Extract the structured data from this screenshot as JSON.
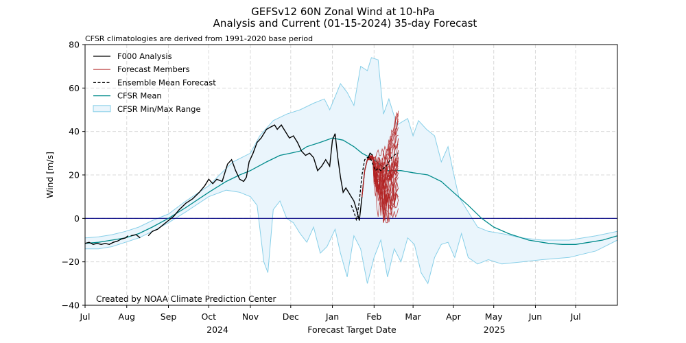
{
  "chart_data": {
    "type": "line",
    "title": "GEFSv12 60N Zonal Wind at 10-hPa",
    "subtitle": "Analysis and Current (01-15-2024) 35-day Forecast",
    "note": "CFSR climatologies are derived from 1991-2020 base period",
    "credit": "Created by NOAA Climate Prediction Center",
    "xlabel": "Forecast Target Date",
    "ylabel": "Wind [m/s]",
    "x_units": "days since Jul 1 (year 1)",
    "xlim": [
      0,
      396
    ],
    "ylim": [
      -40,
      80
    ],
    "yticks": [
      -40,
      -20,
      0,
      20,
      40,
      60,
      80
    ],
    "xticks": [
      {
        "day": 0,
        "label": "Jul"
      },
      {
        "day": 31,
        "label": "Aug"
      },
      {
        "day": 62,
        "label": "Sep"
      },
      {
        "day": 92,
        "label": "Oct"
      },
      {
        "day": 123,
        "label": "Nov"
      },
      {
        "day": 153,
        "label": "Dec"
      },
      {
        "day": 184,
        "label": "Jan"
      },
      {
        "day": 215,
        "label": "Feb"
      },
      {
        "day": 244,
        "label": "Mar"
      },
      {
        "day": 274,
        "label": "Apr"
      },
      {
        "day": 304,
        "label": "May"
      },
      {
        "day": 335,
        "label": "Jun"
      },
      {
        "day": 365,
        "label": "Jul"
      }
    ],
    "year_labels": [
      {
        "day": 98,
        "label": "2024"
      },
      {
        "day": 304,
        "label": "2025"
      }
    ],
    "grid": true,
    "zero_line": true,
    "legend_position": "top-left",
    "legend": [
      {
        "key": "analysis",
        "label": "F000 Analysis"
      },
      {
        "key": "members",
        "label": "Forecast Members"
      },
      {
        "key": "ensmean",
        "label": "Ensemble Mean Forecast"
      },
      {
        "key": "cfsr_mean",
        "label": "CFSR Mean"
      },
      {
        "key": "cfsr_range",
        "label": "CFSR Min/Max Range"
      }
    ],
    "colors": {
      "analysis": "#000000",
      "members": "#b22222",
      "ensmean": "#000000",
      "cfsr_mean": "#008b8b",
      "range_fill": "#eaf5fc",
      "range_edge": "#87cfe8",
      "zero_line": "#000080",
      "grid": "#d9d9d9"
    },
    "cfsr_mean": {
      "x": [
        0,
        10,
        20,
        30,
        40,
        50,
        62,
        75,
        92,
        105,
        115,
        123,
        135,
        145,
        153,
        160,
        165,
        175,
        184,
        192,
        200,
        206,
        215,
        225,
        235,
        244,
        255,
        265,
        274,
        285,
        295,
        304,
        315,
        330,
        345,
        355,
        365,
        375,
        385,
        396
      ],
      "y": [
        -11.5,
        -11,
        -10,
        -9,
        -7,
        -4,
        0,
        5,
        12,
        17,
        20,
        22,
        26,
        29,
        30,
        31,
        33,
        35,
        37,
        36,
        33,
        30,
        27,
        22,
        22,
        21,
        20,
        17,
        12,
        6,
        0,
        -4,
        -7,
        -10,
        -11.5,
        -12,
        -12,
        -11,
        -10,
        -8
      ]
    },
    "cfsr_max": {
      "x": [
        0,
        10,
        20,
        30,
        40,
        50,
        62,
        75,
        92,
        100,
        110,
        123,
        130,
        140,
        150,
        160,
        170,
        178,
        182,
        186,
        190,
        195,
        200,
        205,
        210,
        213,
        218,
        222,
        226,
        232,
        240,
        244,
        248,
        254,
        260,
        265,
        270,
        274,
        278,
        282,
        286,
        292,
        300,
        310,
        325,
        340,
        360,
        380,
        396
      ],
      "y": [
        -9,
        -8.5,
        -7.5,
        -6,
        -4,
        -1,
        2,
        8,
        15,
        20,
        26,
        30,
        38,
        45,
        48,
        50,
        53,
        55,
        50,
        56,
        62,
        58,
        52,
        70,
        68,
        74,
        73,
        48,
        55,
        43,
        46,
        38,
        45,
        41,
        38,
        26,
        33,
        21,
        10,
        6,
        2,
        -4,
        -6,
        -7,
        -9,
        -10,
        -10,
        -8,
        -6
      ]
    },
    "cfsr_min": {
      "x": [
        0,
        10,
        20,
        30,
        40,
        50,
        62,
        75,
        92,
        105,
        115,
        123,
        128,
        133,
        136,
        140,
        145,
        150,
        155,
        160,
        165,
        170,
        175,
        180,
        186,
        190,
        195,
        200,
        205,
        210,
        215,
        220,
        225,
        230,
        235,
        240,
        245,
        250,
        255,
        260,
        265,
        270,
        275,
        280,
        285,
        292,
        300,
        310,
        325,
        340,
        360,
        380,
        396
      ],
      "y": [
        -14,
        -14,
        -13,
        -11,
        -9,
        -6,
        -2,
        3,
        10,
        13,
        12,
        10,
        6,
        -20,
        -25,
        4,
        8,
        0,
        -2,
        -7,
        -11,
        -4,
        -16,
        -13,
        -5,
        -16,
        -27,
        -8,
        -14,
        -30,
        -18,
        -10,
        -27,
        -14,
        -20,
        -9,
        -12,
        -25,
        -30,
        -18,
        -12,
        -11,
        -18,
        -7,
        -18,
        -21,
        -19,
        -21,
        -20,
        -19,
        -18,
        -15,
        -10
      ]
    },
    "analysis": {
      "segments": [
        {
          "x": [
            0,
            3,
            6,
            9,
            12,
            15,
            18,
            21,
            24,
            27,
            30,
            32
          ],
          "y": [
            -11.5,
            -11,
            -12,
            -11.5,
            -12,
            -11.5,
            -12,
            -11,
            -10.5,
            -9.5,
            -9,
            -8
          ]
        },
        {
          "x": [
            34,
            38,
            41
          ],
          "y": [
            -8,
            -7.5,
            -9
          ]
        },
        {
          "x": [
            47,
            50,
            54,
            58,
            62,
            66,
            70,
            75,
            80,
            85,
            89,
            92,
            95,
            98,
            102,
            106,
            109,
            112,
            115,
            118,
            120,
            122,
            125,
            128,
            131,
            135,
            138,
            141,
            143,
            146,
            149,
            152,
            155,
            158,
            161,
            164,
            167,
            170,
            173,
            176,
            179,
            182,
            184,
            186,
            188,
            190,
            192,
            194,
            196,
            198,
            200,
            202,
            204,
            206,
            208,
            210,
            212,
            214
          ],
          "y": [
            -8,
            -6,
            -5,
            -3,
            -1,
            1,
            4,
            7,
            9,
            12,
            15,
            18,
            16,
            18,
            17,
            25,
            27,
            22,
            18,
            17,
            19,
            26,
            30,
            35,
            37,
            41,
            42,
            43,
            41,
            43,
            40,
            37,
            38,
            35,
            31,
            29,
            30,
            28,
            22,
            24,
            27,
            24,
            36,
            39,
            28,
            19,
            12,
            14,
            12,
            10,
            8,
            4,
            -1,
            10,
            22,
            27,
            30,
            29
          ]
        }
      ]
    },
    "ensemble_mean": {
      "x": [
        198,
        200,
        202,
        204,
        206,
        208,
        210,
        212,
        214,
        216,
        218,
        220,
        222,
        224,
        226,
        228,
        230,
        232,
        233
      ],
      "y": [
        6,
        3,
        -1,
        8,
        20,
        27,
        28,
        28,
        25,
        22,
        23,
        22,
        23,
        24,
        26,
        28,
        29,
        30,
        30
      ]
    },
    "members": {
      "start_day": 212,
      "end_day": 233,
      "count": 31,
      "final_value_range": [
        2,
        50
      ],
      "min_value": -2,
      "max_value": 52
    }
  }
}
